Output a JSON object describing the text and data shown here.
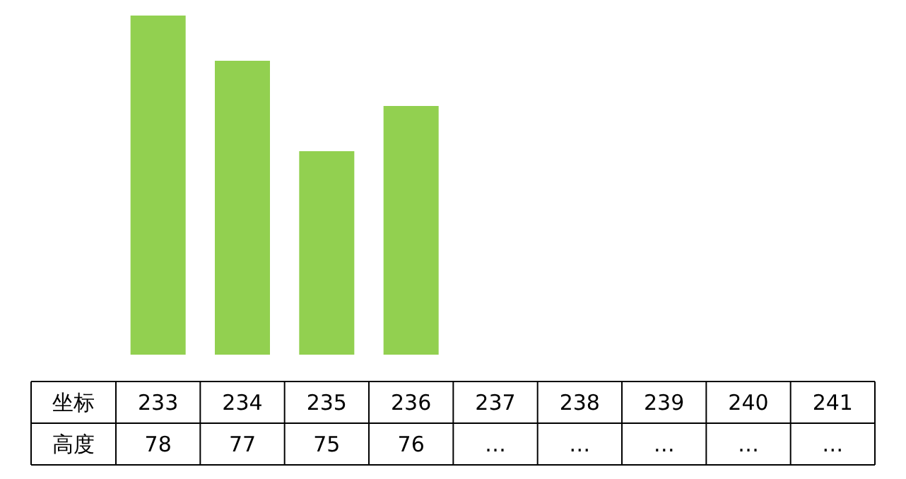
{
  "chart_data": {
    "type": "bar",
    "xlabel": "坐标",
    "ylabel": "高度",
    "categories": [
      "233",
      "234",
      "235",
      "236",
      "237",
      "238",
      "239",
      "240",
      "241"
    ],
    "values": [
      78,
      77,
      75,
      76,
      null,
      null,
      null,
      null,
      null
    ],
    "value_labels": [
      "78",
      "77",
      "75",
      "76",
      "…",
      "…",
      "…",
      "…",
      "…"
    ],
    "color": "#92d050",
    "ylim": [
      70.5,
      78
    ]
  }
}
